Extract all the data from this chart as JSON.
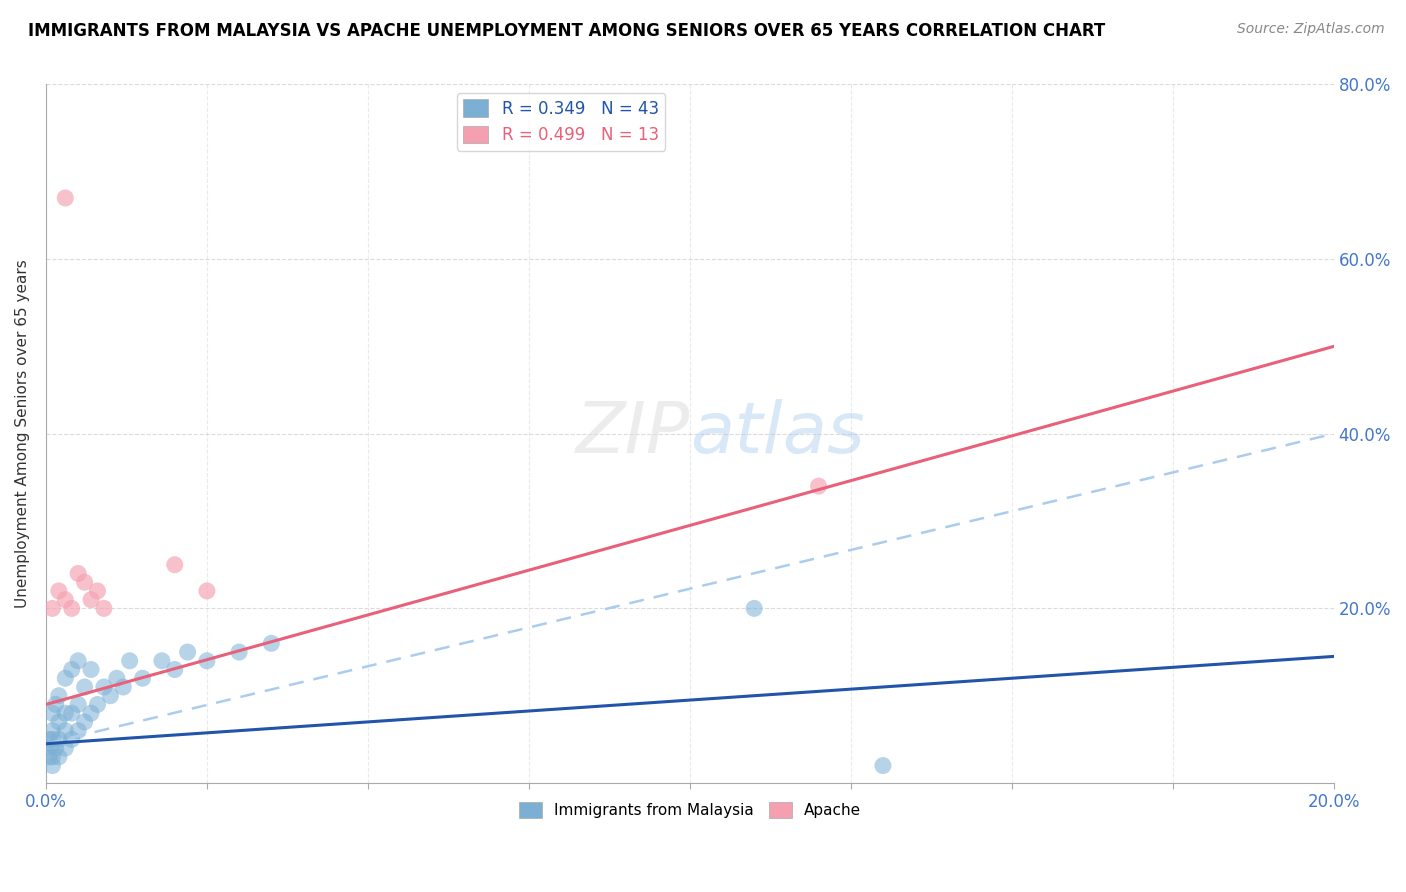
{
  "title": "IMMIGRANTS FROM MALAYSIA VS APACHE UNEMPLOYMENT AMONG SENIORS OVER 65 YEARS CORRELATION CHART",
  "source": "Source: ZipAtlas.com",
  "ylabel": "Unemployment Among Seniors over 65 years",
  "xlim": [
    0.0,
    0.2
  ],
  "ylim": [
    0.0,
    0.8
  ],
  "R_blue": 0.349,
  "N_blue": 43,
  "R_pink": 0.499,
  "N_pink": 13,
  "blue_color": "#7BAFD4",
  "pink_color": "#F4A0B0",
  "blue_line_color": "#2255AA",
  "pink_line_color": "#E8607A",
  "blue_dashed_color": "#AACCEE",
  "tick_color": "#4477CC",
  "blue_scatter_x": [
    0.0005,
    0.0005,
    0.0005,
    0.001,
    0.001,
    0.001,
    0.001,
    0.001,
    0.0015,
    0.0015,
    0.002,
    0.002,
    0.002,
    0.002,
    0.003,
    0.003,
    0.003,
    0.003,
    0.004,
    0.004,
    0.004,
    0.005,
    0.005,
    0.005,
    0.006,
    0.006,
    0.007,
    0.007,
    0.008,
    0.009,
    0.01,
    0.011,
    0.012,
    0.013,
    0.015,
    0.018,
    0.02,
    0.022,
    0.025,
    0.03,
    0.035,
    0.11,
    0.13
  ],
  "blue_scatter_y": [
    0.03,
    0.04,
    0.05,
    0.02,
    0.03,
    0.05,
    0.06,
    0.08,
    0.04,
    0.09,
    0.03,
    0.05,
    0.07,
    0.1,
    0.04,
    0.06,
    0.08,
    0.12,
    0.05,
    0.08,
    0.13,
    0.06,
    0.09,
    0.14,
    0.07,
    0.11,
    0.08,
    0.13,
    0.09,
    0.11,
    0.1,
    0.12,
    0.11,
    0.14,
    0.12,
    0.14,
    0.13,
    0.15,
    0.14,
    0.15,
    0.16,
    0.2,
    0.02
  ],
  "pink_scatter_x": [
    0.001,
    0.002,
    0.003,
    0.004,
    0.005,
    0.006,
    0.007,
    0.008,
    0.009,
    0.02,
    0.025,
    0.12,
    0.003
  ],
  "pink_scatter_y": [
    0.2,
    0.22,
    0.21,
    0.2,
    0.24,
    0.23,
    0.21,
    0.22,
    0.2,
    0.25,
    0.22,
    0.34,
    0.67
  ],
  "blue_line_x0": 0.0,
  "blue_line_y0": 0.045,
  "blue_line_x1": 0.2,
  "blue_line_y1": 0.145,
  "pink_line_x0": 0.0,
  "pink_line_y0": 0.09,
  "pink_line_x1": 0.2,
  "pink_line_y1": 0.5,
  "dash_line_x0": 0.0,
  "dash_line_y0": 0.045,
  "dash_line_x1": 0.2,
  "dash_line_y1": 0.4
}
